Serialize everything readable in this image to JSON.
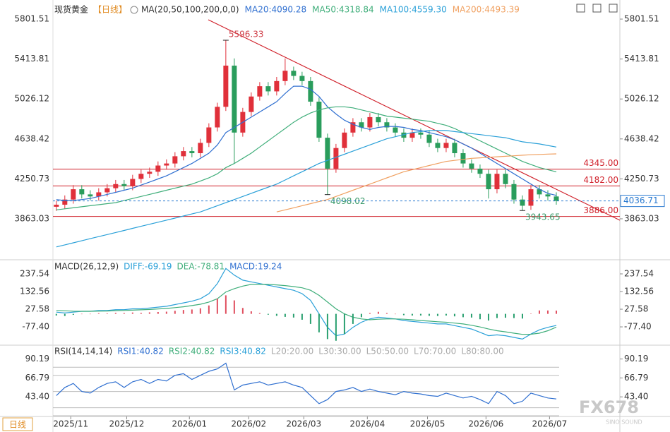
{
  "chart_data": [
    {
      "type": "candlestick",
      "title": "现货黄金",
      "period": "【日线】",
      "indicator": "MA(20,50,100,200,0,0)",
      "up_color": "#e0303a",
      "down_color": "#2a9d5c",
      "xlim": [
        -0.4,
        66.5
      ],
      "xticks": [
        {
          "value": 1.7,
          "label": "2025/11"
        },
        {
          "value": 8.3,
          "label": "2025/12"
        },
        {
          "value": 15.7,
          "label": "2026/01"
        },
        {
          "value": 22.7,
          "label": "2026/02"
        },
        {
          "value": 29.2,
          "label": "2026/03"
        },
        {
          "value": 36.7,
          "label": "2026/04"
        },
        {
          "value": 43.8,
          "label": "2026/05"
        },
        {
          "value": 50.7,
          "label": "2026/06"
        },
        {
          "value": 58.2,
          "label": "2026/07"
        }
      ],
      "ylim": [
        3486,
        5932
      ],
      "yticks": [
        5801.51,
        5413.81,
        5026.12,
        4638.42,
        4250.73,
        3863.03
      ],
      "open": [
        3980,
        4000,
        4050,
        4150,
        4100,
        4080,
        4120,
        4160,
        4200,
        4180,
        4250,
        4300,
        4320,
        4380,
        4400,
        4470,
        4520,
        4500,
        4600,
        4750,
        4950,
        5350,
        4700,
        4900,
        5050,
        5150,
        5100,
        5200,
        5300,
        5250,
        5200,
        5000,
        4650,
        4350,
        4550,
        4700,
        4800,
        4750,
        4850,
        4800,
        4750,
        4700,
        4650,
        4700,
        4680,
        4600,
        4550,
        4600,
        4500,
        4400,
        4350,
        4300,
        4150,
        4300,
        4200,
        4050,
        3990,
        4150,
        4100,
        4080
      ],
      "high": [
        4040,
        4090,
        4190,
        4190,
        4140,
        4160,
        4200,
        4240,
        4240,
        4290,
        4340,
        4360,
        4420,
        4440,
        4510,
        4560,
        4560,
        4640,
        4790,
        4990,
        5596.33,
        5420,
        4940,
        5090,
        5190,
        5190,
        5240,
        5420,
        5340,
        5290,
        5240,
        5040,
        4690,
        4590,
        4740,
        4840,
        4840,
        4890,
        4890,
        4840,
        4790,
        4740,
        4740,
        4740,
        4720,
        4640,
        4640,
        4640,
        4540,
        4440,
        4390,
        4340,
        4340,
        4340,
        4240,
        4090,
        4190,
        4190,
        4140,
        4120
      ],
      "low": [
        3940,
        3960,
        4010,
        4060,
        4040,
        4040,
        4080,
        4120,
        4140,
        4140,
        4210,
        4260,
        4280,
        4340,
        4360,
        4430,
        4460,
        4460,
        4560,
        4710,
        4910,
        4400,
        4660,
        4860,
        5010,
        5060,
        5060,
        5160,
        5210,
        5160,
        4960,
        4610,
        4098.02,
        4310,
        4510,
        4660,
        4710,
        4710,
        4760,
        4710,
        4660,
        4610,
        4610,
        4640,
        4560,
        4510,
        4510,
        4460,
        4360,
        4310,
        4260,
        4060,
        4110,
        4160,
        4010,
        3943.65,
        3950,
        4060,
        4040,
        4000
      ],
      "close": [
        4000,
        4050,
        4150,
        4100,
        4080,
        4120,
        4160,
        4200,
        4180,
        4250,
        4300,
        4320,
        4380,
        4400,
        4470,
        4520,
        4500,
        4600,
        4750,
        4950,
        5350,
        4700,
        4900,
        5050,
        5150,
        5100,
        5200,
        5300,
        5250,
        5200,
        5000,
        4650,
        4350,
        4550,
        4700,
        4800,
        4750,
        4850,
        4800,
        4750,
        4700,
        4650,
        4700,
        4680,
        4600,
        4550,
        4600,
        4500,
        4400,
        4350,
        4300,
        4150,
        4300,
        4200,
        4050,
        3990,
        4150,
        4100,
        4080,
        4036.71
      ],
      "series": [
        {
          "name": "MA20:4090.28",
          "color": "#2f6fd0",
          "values": [
            4050,
            4040,
            4040,
            4050,
            4060,
            4080,
            4100,
            4120,
            4140,
            4160,
            4190,
            4220,
            4250,
            4280,
            4320,
            4360,
            4400,
            4450,
            4500,
            4580,
            4700,
            4750,
            4800,
            4850,
            4900,
            4950,
            5000,
            5080,
            5150,
            5150,
            5120,
            5050,
            4950,
            4880,
            4820,
            4780,
            4750,
            4730,
            4750,
            4760,
            4760,
            4750,
            4730,
            4720,
            4700,
            4680,
            4660,
            4630,
            4590,
            4550,
            4500,
            4450,
            4400,
            4350,
            4300,
            4250,
            4200,
            4150,
            4110,
            4090.28
          ]
        },
        {
          "name": "MA50:4318.84",
          "color": "#3fae7a",
          "values": [
            3950,
            3960,
            3970,
            3980,
            3990,
            4000,
            4010,
            4020,
            4040,
            4060,
            4080,
            4100,
            4120,
            4140,
            4160,
            4180,
            4200,
            4230,
            4260,
            4300,
            4360,
            4400,
            4450,
            4500,
            4560,
            4620,
            4680,
            4740,
            4800,
            4850,
            4890,
            4920,
            4940,
            4950,
            4950,
            4940,
            4920,
            4900,
            4880,
            4860,
            4850,
            4840,
            4830,
            4820,
            4810,
            4790,
            4770,
            4740,
            4700,
            4660,
            4620,
            4580,
            4540,
            4500,
            4460,
            4420,
            4390,
            4360,
            4340,
            4318.84
          ]
        },
        {
          "name": "MA100:4559.30",
          "color": "#2aa0d8",
          "values": [
            3590,
            3610,
            3630,
            3650,
            3670,
            3690,
            3710,
            3730,
            3750,
            3770,
            3790,
            3810,
            3830,
            3850,
            3870,
            3890,
            3910,
            3930,
            3960,
            3990,
            4020,
            4050,
            4080,
            4110,
            4140,
            4170,
            4200,
            4240,
            4280,
            4320,
            4360,
            4400,
            4430,
            4460,
            4490,
            4520,
            4550,
            4580,
            4610,
            4640,
            4660,
            4680,
            4700,
            4710,
            4720,
            4720,
            4720,
            4710,
            4700,
            4690,
            4680,
            4670,
            4660,
            4650,
            4630,
            4610,
            4600,
            4590,
            4575,
            4559.3
          ]
        },
        {
          "name": "MA200:4493.39",
          "color": "#f0a060",
          "values": [
            null,
            null,
            null,
            null,
            null,
            null,
            null,
            null,
            null,
            null,
            null,
            null,
            null,
            null,
            null,
            null,
            null,
            null,
            null,
            null,
            null,
            null,
            null,
            null,
            null,
            null,
            3930,
            3950,
            3970,
            3990,
            4010,
            4030,
            4050,
            4080,
            4110,
            4140,
            4170,
            4200,
            4230,
            4260,
            4290,
            4320,
            4340,
            4360,
            4380,
            4400,
            4420,
            4430,
            4440,
            4450,
            4455,
            4460,
            4465,
            4470,
            4475,
            4480,
            4485,
            4488,
            4491,
            4493.39
          ]
        }
      ],
      "levels": [
        {
          "value": 4345,
          "label": "4345.00"
        },
        {
          "value": 4182,
          "label": "4182.00"
        },
        {
          "value": 3886,
          "label": "3886.00"
        }
      ],
      "level_color": "#d0202a",
      "annotations": [
        {
          "x": 20,
          "value": 5596.33,
          "color": "#d0404a"
        },
        {
          "x": 32,
          "value": 4098.02,
          "color": "#3a9a6a"
        },
        {
          "x": 55,
          "value": 3943.65,
          "color": "#3a9a6a"
        }
      ],
      "last_price": 4036.71,
      "last_price_color": "#2a7ad0"
    },
    {
      "type": "macd",
      "indicator": "MACD(26,12,9)",
      "ylim": [
        -182,
        313
      ],
      "yticks": [
        237.54,
        132.56,
        27.58,
        {
          "value": -77.4,
          "label": "-77.40"
        }
      ],
      "up_color": "#e05060",
      "down_color": "#2aa070",
      "series": [
        {
          "name": "DIFF:-69.19",
          "color": "#2aa0d8",
          "values": [
            10,
            5,
            10,
            15,
            15,
            20,
            20,
            25,
            25,
            30,
            30,
            35,
            40,
            45,
            55,
            65,
            75,
            90,
            120,
            180,
            270,
            230,
            200,
            190,
            180,
            170,
            160,
            150,
            140,
            120,
            80,
            0,
            -80,
            -130,
            -120,
            -80,
            -50,
            -30,
            -20,
            -25,
            -30,
            -40,
            -45,
            -50,
            -55,
            -60,
            -60,
            -70,
            -80,
            -90,
            -110,
            -130,
            -125,
            -130,
            -140,
            -150,
            -120,
            -95,
            -80,
            -69.19
          ]
        },
        {
          "name": "DEA:-78.81",
          "color": "#3fae7a",
          "values": [
            20,
            18,
            16,
            15,
            15,
            16,
            17,
            19,
            20,
            22,
            24,
            26,
            29,
            32,
            37,
            42,
            49,
            57,
            70,
            90,
            130,
            150,
            165,
            175,
            175,
            175,
            172,
            168,
            162,
            155,
            140,
            110,
            70,
            30,
            0,
            -20,
            -30,
            -35,
            -32,
            -30,
            -30,
            -32,
            -35,
            -40,
            -43,
            -47,
            -50,
            -55,
            -60,
            -68,
            -78,
            -90,
            -100,
            -107,
            -115,
            -122,
            -121,
            -115,
            -100,
            -78.81
          ]
        },
        {
          "name": "MACD:19.24",
          "color": "#2f6fd0",
          "bars": true,
          "values": [
            -10,
            -13,
            -6,
            0,
            0,
            4,
            3,
            6,
            5,
            8,
            6,
            9,
            11,
            13,
            18,
            23,
            26,
            33,
            50,
            90,
            110,
            80,
            35,
            15,
            5,
            -5,
            -12,
            -18,
            -22,
            -35,
            -60,
            -110,
            -150,
            -160,
            -120,
            -60,
            -20,
            5,
            12,
            5,
            0,
            -8,
            -10,
            -10,
            -12,
            -13,
            -10,
            -15,
            -20,
            -22,
            -32,
            -40,
            -25,
            -23,
            -25,
            -28,
            1,
            20,
            20,
            19.24
          ]
        }
      ]
    },
    {
      "type": "line",
      "indicator": "RSI(14,14,14)",
      "ylim": [
        20.9,
        106.4
      ],
      "yticks": [
        90.19,
        66.79,
        {
          "value": 43.4,
          "label": "43.40"
        }
      ],
      "series": [
        {
          "name": "RSI1:40.82",
          "color": "#2f6fd0",
          "values": [
            45,
            55,
            60,
            50,
            48,
            55,
            60,
            62,
            55,
            62,
            65,
            60,
            65,
            63,
            70,
            72,
            65,
            70,
            75,
            78,
            85,
            52,
            58,
            60,
            62,
            58,
            60,
            62,
            58,
            55,
            45,
            35,
            40,
            50,
            52,
            55,
            50,
            53,
            50,
            48,
            46,
            50,
            48,
            47,
            45,
            44,
            48,
            45,
            42,
            44,
            40,
            35,
            50,
            45,
            35,
            38,
            48,
            45,
            42,
            40.82
          ]
        }
      ],
      "legend_extra": [
        {
          "text": "RSI2:40.82",
          "color": "#3fae7a"
        },
        {
          "text": "RSI3:40.82",
          "color": "#2aa0d8"
        },
        {
          "text": "L20:20.00",
          "color": "#aaaaaa"
        },
        {
          "text": "L30:30.00",
          "color": "#aaaaaa"
        },
        {
          "text": "L50:50.00",
          "color": "#aaaaaa"
        },
        {
          "text": "L70:70.00",
          "color": "#aaaaaa"
        },
        {
          "text": "L80:80.00",
          "color": "#aaaaaa"
        }
      ],
      "levels": [
        20,
        30,
        50,
        70,
        80
      ]
    }
  ],
  "period_button": "日线",
  "watermark": {
    "main": "FX678",
    "sub": "SINO SOUND"
  }
}
